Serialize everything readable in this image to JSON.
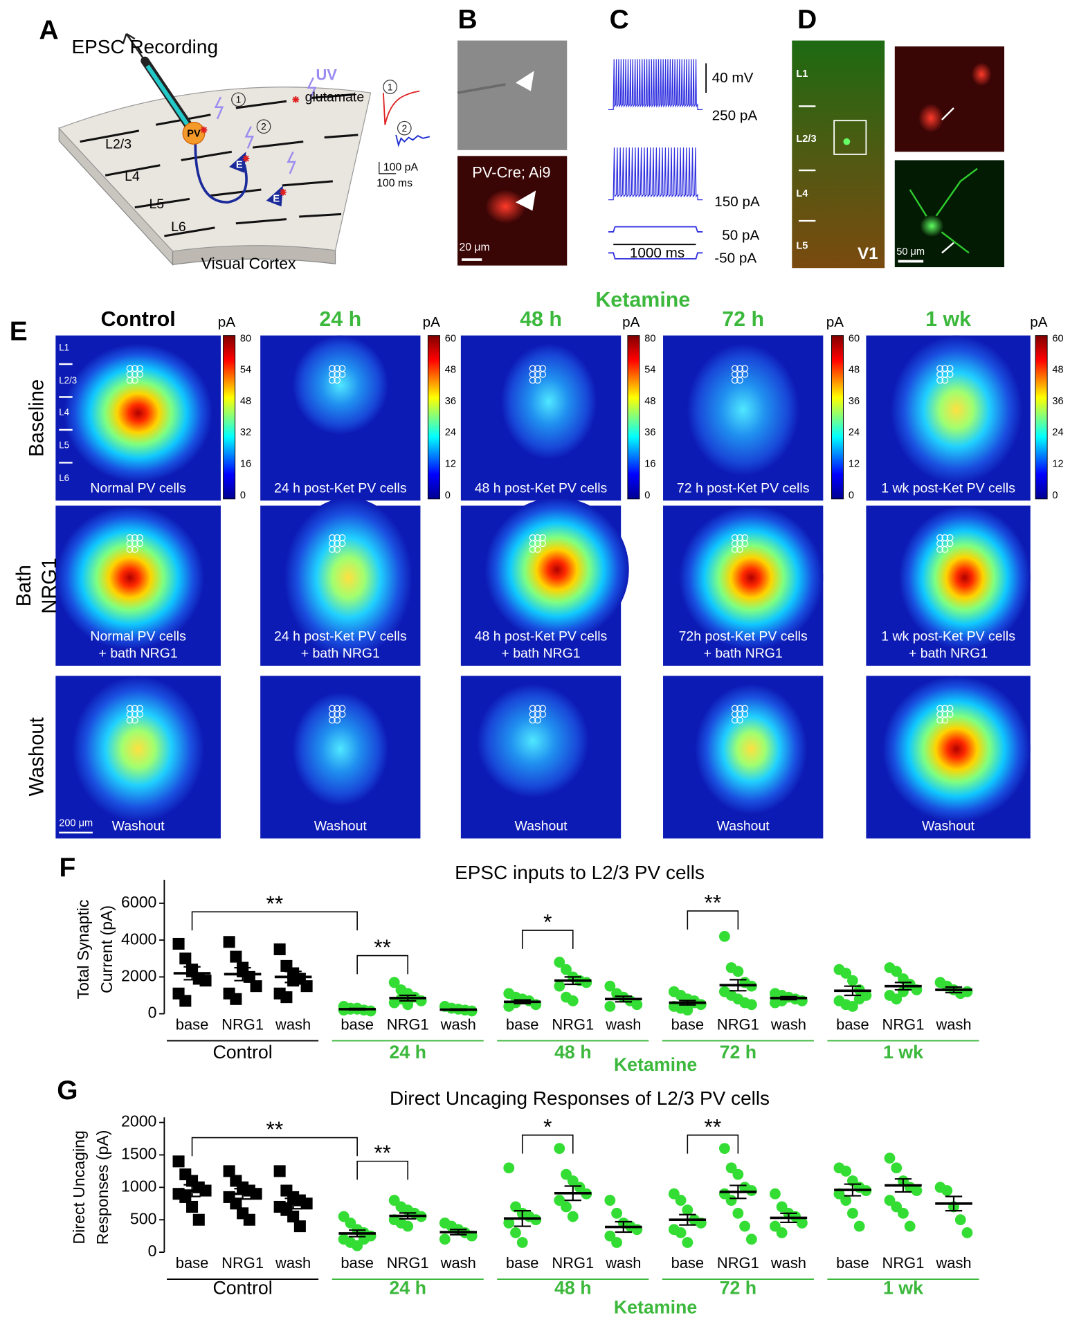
{
  "panel_letters": [
    "A",
    "B",
    "C",
    "D",
    "E",
    "F",
    "G"
  ],
  "panel_a": {
    "title": "EPSC Recording",
    "uv": "UV",
    "glutamate": "glutamate",
    "layers": [
      "L2/3",
      "L4",
      "L5",
      "L6"
    ],
    "caption": "Visual Cortex",
    "cells": [
      "PV",
      "E",
      "E"
    ],
    "sites": [
      "1",
      "2"
    ],
    "scale": [
      "100 pA",
      "100 ms"
    ]
  },
  "panel_b": {
    "label": "PV-Cre; Ai9",
    "scale": "20 μm"
  },
  "panel_c": {
    "labels": [
      "40 mV",
      "250 pA",
      "150 pA",
      "50 pA",
      "-50 pA",
      "1000 ms"
    ]
  },
  "panel_d": {
    "layers": [
      "L1",
      "L2/3",
      "L4",
      "L5"
    ],
    "area": "V1",
    "scale": "50 μm"
  },
  "panel_e": {
    "group_label": "Ketamine",
    "rows": [
      [
        "Baseline"
      ],
      [
        "Bath",
        "NRG1"
      ],
      [
        "Washout"
      ]
    ],
    "layers": [
      "L1",
      "L2/3",
      "L4",
      "L5",
      "L6"
    ],
    "scale": "200 μm",
    "columns": [
      {
        "title": "Control",
        "unit": "pA",
        "colorbar_ticks": [
          80,
          54,
          48,
          32,
          16,
          0
        ],
        "captions": [
          [
            "Normal PV cells"
          ],
          [
            "Normal PV cells",
            "+ bath NRG1"
          ],
          [
            "Washout"
          ]
        ]
      },
      {
        "title": "24 h",
        "unit": "pA",
        "colorbar_ticks": [
          60,
          48,
          36,
          24,
          12,
          0
        ],
        "captions": [
          [
            "24 h post-Ket PV cells"
          ],
          [
            "24 h post-Ket PV cells",
            "+ bath NRG1"
          ],
          [
            "Washout"
          ]
        ]
      },
      {
        "title": "48 h",
        "unit": "pA",
        "colorbar_ticks": [
          80,
          54,
          48,
          36,
          16,
          0
        ],
        "captions": [
          [
            "48 h post-Ket PV cells"
          ],
          [
            "48 h post-Ket PV cells",
            "+ bath NRG1"
          ],
          [
            "Washout"
          ]
        ]
      },
      {
        "title": "72 h",
        "unit": "pA",
        "colorbar_ticks": [
          60,
          48,
          36,
          24,
          12,
          0
        ],
        "captions": [
          [
            "72 h post-Ket PV cells"
          ],
          [
            "72h post-Ket PV cells",
            "+ bath NRG1"
          ],
          [
            "Washout"
          ]
        ]
      },
      {
        "title": "1 wk",
        "unit": "pA",
        "colorbar_ticks": [
          60,
          48,
          36,
          24,
          12,
          0
        ],
        "captions": [
          [
            "1 wk post-Ket PV cells"
          ],
          [
            "1 wk post-Ket PV cells",
            "+ bath NRG1"
          ],
          [
            "Washout"
          ]
        ]
      }
    ]
  },
  "chart_data": [
    {
      "type": "scatter",
      "title": "EPSC inputs to L2/3 PV cells",
      "y_label": [
        "Total Synaptic",
        "Current (pA)"
      ],
      "ylim": [
        0,
        7000
      ],
      "yticks": [
        0,
        2000,
        4000,
        6000
      ],
      "categories": [
        "base",
        "NRG1",
        "wash",
        "base",
        "NRG1",
        "wash",
        "base",
        "NRG1",
        "wash",
        "base",
        "NRG1",
        "wash",
        "base",
        "NRG1",
        "wash"
      ],
      "groups": [
        {
          "label": "Control",
          "color": "#000000",
          "marker": "square"
        },
        {
          "label": "24 h",
          "color": "#33dd33",
          "marker": "circle"
        },
        {
          "label": "48 h",
          "color": "#33dd33",
          "marker": "circle"
        },
        {
          "label": "72 h",
          "color": "#33dd33",
          "marker": "circle"
        },
        {
          "label": "1 wk",
          "color": "#33dd33",
          "marker": "circle"
        }
      ],
      "group_label": "Ketamine",
      "annotations": [
        "**",
        "**",
        "*",
        "**"
      ],
      "points": [
        [
          3800,
          3000,
          2400,
          1900,
          1800,
          1100,
          700,
          2300
        ],
        [
          3900,
          3100,
          2300,
          2000,
          1500,
          1100,
          800,
          2500
        ],
        [
          3500,
          2600,
          2200,
          1900,
          1500,
          1100,
          900,
          1800
        ],
        [
          400,
          300,
          250,
          200,
          150,
          200,
          250,
          300
        ],
        [
          1700,
          1300,
          1100,
          900,
          700,
          600,
          800,
          500
        ],
        [
          400,
          300,
          250,
          200,
          150
        ],
        [
          1100,
          900,
          800,
          700,
          500,
          400,
          600
        ],
        [
          2800,
          2400,
          2000,
          1800,
          1700,
          1500,
          900,
          700
        ],
        [
          1500,
          1100,
          900,
          700,
          500,
          400
        ],
        [
          1200,
          1000,
          800,
          600,
          500,
          400,
          300,
          200,
          700
        ],
        [
          4200,
          2500,
          2300,
          1700,
          1500,
          1200,
          1000,
          800,
          600,
          500
        ],
        [
          1100,
          1000,
          900,
          800,
          700,
          600,
          700
        ],
        [
          2400,
          2200,
          1800,
          1300,
          1000,
          700,
          500,
          400,
          800
        ],
        [
          2500,
          2300,
          1900,
          1600,
          1300,
          1000,
          800,
          1200
        ],
        [
          1700,
          1500,
          1300,
          1100,
          1200
        ]
      ],
      "means": [
        2200,
        2150,
        2000,
        250,
        850,
        220,
        650,
        1800,
        800,
        600,
        1550,
        850,
        1250,
        1500,
        1300
      ],
      "sem": [
        350,
        350,
        300,
        40,
        150,
        40,
        100,
        200,
        150,
        120,
        300,
        80,
        250,
        200,
        150
      ]
    },
    {
      "type": "scatter",
      "title": "Direct Uncaging Responses of L2/3 PV cells",
      "y_label": [
        "Direct Uncaging",
        "Responses (pA)"
      ],
      "ylim": [
        0,
        2000
      ],
      "yticks": [
        0,
        500,
        1000,
        1500,
        2000
      ],
      "categories": [
        "base",
        "NRG1",
        "wash",
        "base",
        "NRG1",
        "wash",
        "base",
        "NRG1",
        "wash",
        "base",
        "NRG1",
        "wash",
        "base",
        "NRG1",
        "wash"
      ],
      "groups": [
        {
          "label": "Control",
          "color": "#000000",
          "marker": "square"
        },
        {
          "label": "24 h",
          "color": "#33dd33",
          "marker": "circle"
        },
        {
          "label": "48 h",
          "color": "#33dd33",
          "marker": "circle"
        },
        {
          "label": "72 h",
          "color": "#33dd33",
          "marker": "circle"
        },
        {
          "label": "1 wk",
          "color": "#33dd33",
          "marker": "circle"
        }
      ],
      "group_label": "Ketamine",
      "annotations": [
        "**",
        "**",
        "*",
        "**"
      ],
      "points": [
        [
          1400,
          1200,
          1100,
          1000,
          950,
          900,
          850,
          700,
          500
        ],
        [
          1250,
          1100,
          1000,
          950,
          900,
          850,
          750,
          600,
          500
        ],
        [
          1250,
          950,
          850,
          800,
          750,
          700,
          650,
          550,
          400
        ],
        [
          550,
          450,
          350,
          300,
          250,
          200,
          150,
          100,
          200
        ],
        [
          800,
          700,
          650,
          600,
          550,
          500,
          450,
          400
        ],
        [
          450,
          400,
          350,
          300,
          250,
          200
        ],
        [
          1300,
          700,
          600,
          550,
          500,
          450,
          300,
          150
        ],
        [
          1600,
          1200,
          1100,
          1000,
          900,
          800,
          700,
          550
        ],
        [
          800,
          600,
          450,
          400,
          350,
          250,
          150
        ],
        [
          900,
          800,
          650,
          500,
          450,
          350,
          300,
          150
        ],
        [
          1600,
          1300,
          1200,
          1000,
          950,
          900,
          800,
          600,
          400,
          200
        ],
        [
          900,
          700,
          600,
          550,
          450,
          400,
          300
        ],
        [
          1300,
          1250,
          1100,
          1000,
          950,
          900,
          800,
          600,
          400
        ],
        [
          1450,
          1300,
          1100,
          1000,
          950,
          800,
          700,
          600,
          400
        ],
        [
          1000,
          950,
          700,
          500,
          300
        ]
      ],
      "means": [
        950,
        900,
        750,
        290,
        560,
        310,
        520,
        910,
        390,
        500,
        930,
        530,
        960,
        1030,
        750
      ],
      "sem": [
        90,
        80,
        80,
        50,
        45,
        40,
        120,
        110,
        80,
        80,
        100,
        70,
        90,
        100,
        110
      ]
    }
  ]
}
